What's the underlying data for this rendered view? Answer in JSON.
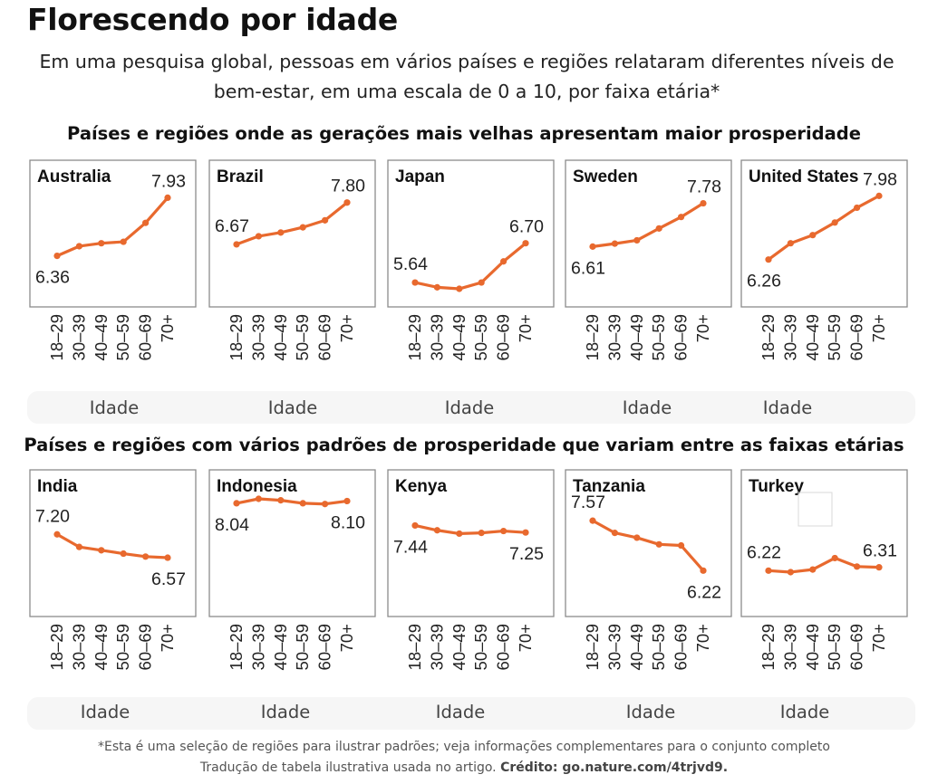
{
  "title": "Florescendo por idade",
  "subtitle": "Em uma pesquisa global, pessoas em vários países e regiões relataram diferentes níveis de bem-estar, em uma escala de 0 a 10, por faixa etária*",
  "section_headings": [
    "Países e regiões onde as gerações mais velhas apresentam maior prosperidade",
    "Países e regiões com vários padrões de prosperidade que variam entre as faixas etárias"
  ],
  "age_axis_label": "Idade",
  "footnote": {
    "line1": "*Esta é uma seleção de regiões para ilustrar padrões; veja informações complementares para o conjunto completo",
    "line2_text": "Tradução de tabela ilustrativa usada no artigo. ",
    "line2_credit": "Crédito: go.nature.com/4trjvd9."
  },
  "colors": {
    "line": "#e8692e",
    "panel_border": "#8c8c8c",
    "axis_band": "#f6f6f6",
    "text": "#222222"
  },
  "chart_data": [
    {
      "type": "line",
      "title": "Australia",
      "categories": [
        "18–29",
        "30–39",
        "40–49",
        "50–59",
        "60–69",
        "70+"
      ],
      "values": [
        6.36,
        6.62,
        6.7,
        6.74,
        7.25,
        7.93
      ],
      "labels": {
        "first": "6.36",
        "last": "7.93"
      }
    },
    {
      "type": "line",
      "title": "Brazil",
      "categories": [
        "18–29",
        "30–39",
        "40–49",
        "50–59",
        "60–69",
        "70+"
      ],
      "values": [
        6.67,
        6.89,
        6.99,
        7.13,
        7.32,
        7.8
      ],
      "labels": {
        "first": "6.67",
        "last": "7.80"
      }
    },
    {
      "type": "line",
      "title": "Japan",
      "categories": [
        "18–29",
        "30–39",
        "40–49",
        "50–59",
        "60–69",
        "70+"
      ],
      "values": [
        5.64,
        5.51,
        5.47,
        5.64,
        6.21,
        6.7
      ],
      "labels": {
        "first": "5.64",
        "last": "6.70"
      }
    },
    {
      "type": "line",
      "title": "Sweden",
      "categories": [
        "18–29",
        "30–39",
        "40–49",
        "50–59",
        "60–69",
        "70+"
      ],
      "values": [
        6.61,
        6.69,
        6.78,
        7.1,
        7.41,
        7.78
      ],
      "labels": {
        "first": "6.61",
        "last": "7.78"
      }
    },
    {
      "type": "line",
      "title": "United States",
      "categories": [
        "18–29",
        "30–39",
        "40–49",
        "50–59",
        "60–69",
        "70+"
      ],
      "values": [
        6.26,
        6.7,
        6.92,
        7.26,
        7.66,
        7.98
      ],
      "labels": {
        "first": "6.26",
        "last": "7.98"
      }
    },
    {
      "type": "line",
      "title": "India",
      "categories": [
        "18–29",
        "30–39",
        "40–49",
        "50–59",
        "60–69",
        "70+"
      ],
      "values": [
        7.2,
        6.86,
        6.77,
        6.68,
        6.6,
        6.57
      ],
      "labels": {
        "first": "7.20",
        "last": "6.57"
      }
    },
    {
      "type": "line",
      "title": "Indonesia",
      "categories": [
        "18–29",
        "30–39",
        "40–49",
        "50–59",
        "60–69",
        "70+"
      ],
      "values": [
        8.04,
        8.16,
        8.12,
        8.04,
        8.02,
        8.1
      ],
      "labels": {
        "first": "8.04",
        "last": "8.10"
      }
    },
    {
      "type": "line",
      "title": "Kenya",
      "categories": [
        "18–29",
        "30–39",
        "40–49",
        "50–59",
        "60–69",
        "70+"
      ],
      "values": [
        7.44,
        7.31,
        7.22,
        7.24,
        7.29,
        7.25
      ],
      "labels": {
        "first": "7.44",
        "last": "7.25"
      }
    },
    {
      "type": "line",
      "title": "Tanzania",
      "categories": [
        "18–29",
        "30–39",
        "40–49",
        "50–59",
        "60–69",
        "70+"
      ],
      "values": [
        7.57,
        7.24,
        7.11,
        6.93,
        6.9,
        6.22
      ],
      "labels": {
        "first": "7.57",
        "last": "6.22"
      }
    },
    {
      "type": "line",
      "title": "Turkey",
      "categories": [
        "18–29",
        "30–39",
        "40–49",
        "50–59",
        "60–69",
        "70+"
      ],
      "values": [
        6.22,
        6.18,
        6.25,
        6.56,
        6.33,
        6.31
      ],
      "labels": {
        "first": "6.22",
        "last": "6.31"
      }
    }
  ]
}
